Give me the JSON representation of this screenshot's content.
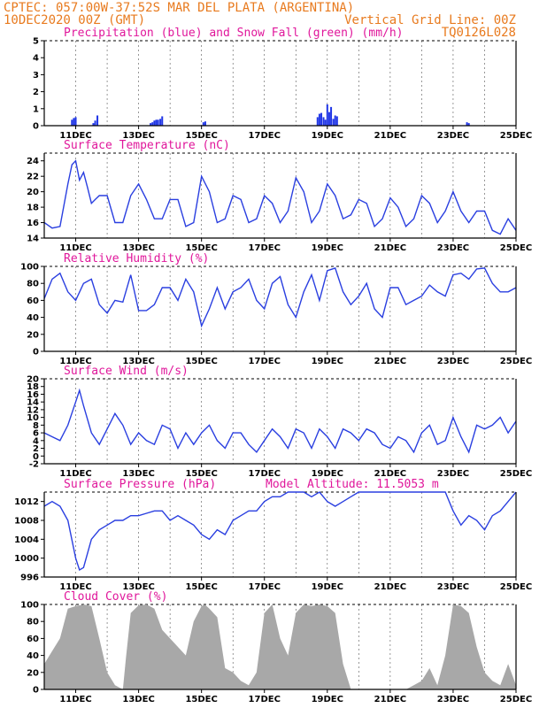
{
  "header": {
    "station": "CPTEC:  057:00W-37:52S  MAR DEL PLATA (ARGENTINA)",
    "run": "10DEC2020 00Z (GMT)",
    "grid_note": "Vertical Grid Line: 00Z",
    "model_code": "TQ0126L028"
  },
  "x_axis": {
    "start_day": 10,
    "end_day": 25,
    "tick_days": [
      11,
      13,
      15,
      17,
      19,
      21,
      23,
      25
    ],
    "tick_labels": [
      "11DEC",
      "13DEC",
      "15DEC",
      "17DEC",
      "19DEC",
      "21DEC",
      "23DEC",
      "25DEC"
    ]
  },
  "colors": {
    "header": "#e87a1e",
    "title": "#e0179b",
    "line": "#2a3fe0",
    "precip": "#1f35e6",
    "snow": "#2fb52f",
    "cloud": "#a8a8a8"
  },
  "chart_data": [
    {
      "type": "bar",
      "title": "Precipitation (blue) and Snow Fall (green) (mm/h)",
      "ylim": [
        0,
        5
      ],
      "yticks": [
        0,
        1,
        2,
        3,
        4,
        5
      ],
      "series": [
        {
          "name": "Precipitation",
          "x": [
            10.88,
            10.94,
            11.0,
            11.56,
            11.62,
            11.69,
            13.38,
            13.44,
            13.5,
            13.56,
            13.62,
            13.69,
            13.75,
            15.06,
            15.12,
            18.69,
            18.75,
            18.81,
            18.88,
            18.94,
            19.0,
            19.06,
            19.12,
            19.19,
            19.25,
            19.31,
            23.44,
            23.5
          ],
          "values": [
            0.35,
            0.45,
            0.5,
            0.15,
            0.3,
            0.6,
            0.15,
            0.2,
            0.3,
            0.35,
            0.35,
            0.4,
            0.55,
            0.2,
            0.25,
            0.5,
            0.7,
            0.75,
            0.5,
            0.35,
            1.25,
            0.8,
            1.1,
            0.4,
            0.6,
            0.55,
            0.2,
            0.15
          ]
        },
        {
          "name": "Snow Fall",
          "x": [],
          "values": []
        }
      ]
    },
    {
      "type": "line",
      "title": "Surface Temperature (nC)",
      "ylim": [
        14,
        25
      ],
      "yticks": [
        14,
        16,
        18,
        20,
        22,
        24
      ],
      "x": [
        10.0,
        10.25,
        10.5,
        10.75,
        10.88,
        11.0,
        11.12,
        11.25,
        11.38,
        11.5,
        11.62,
        11.75,
        12.0,
        12.25,
        12.5,
        12.75,
        13.0,
        13.25,
        13.5,
        13.75,
        14.0,
        14.25,
        14.5,
        14.75,
        15.0,
        15.25,
        15.5,
        15.75,
        16.0,
        16.25,
        16.5,
        16.75,
        17.0,
        17.25,
        17.5,
        17.75,
        18.0,
        18.25,
        18.5,
        18.75,
        19.0,
        19.25,
        19.5,
        19.75,
        20.0,
        20.25,
        20.5,
        20.75,
        21.0,
        21.25,
        21.5,
        21.75,
        22.0,
        22.25,
        22.5,
        22.75,
        23.0,
        23.25,
        23.5,
        23.75,
        24.0,
        24.25,
        24.5,
        24.75,
        25.0
      ],
      "values": [
        16.0,
        15.3,
        15.5,
        21.0,
        23.5,
        24.0,
        21.5,
        22.5,
        20.5,
        18.5,
        19.0,
        19.5,
        19.5,
        16.0,
        16.0,
        19.5,
        21.0,
        19.0,
        16.5,
        16.5,
        19.0,
        19.0,
        15.5,
        16.0,
        22.0,
        20.0,
        16.0,
        16.5,
        19.5,
        19.0,
        16.0,
        16.5,
        19.5,
        18.5,
        16.0,
        17.5,
        21.8,
        20.0,
        16.0,
        17.5,
        21.0,
        19.5,
        16.5,
        17.0,
        19.0,
        18.5,
        15.5,
        16.5,
        19.2,
        18.0,
        15.5,
        16.5,
        19.5,
        18.5,
        16.0,
        17.5,
        20.0,
        17.5,
        16.0,
        17.5,
        17.5,
        15.0,
        14.5,
        16.5,
        15.0
      ]
    },
    {
      "type": "line",
      "title": "Relative Humidity (%)",
      "ylim": [
        0,
        100
      ],
      "yticks": [
        0,
        20,
        40,
        60,
        80,
        100
      ],
      "x": [
        10.0,
        10.25,
        10.5,
        10.75,
        11.0,
        11.25,
        11.5,
        11.75,
        12.0,
        12.25,
        12.5,
        12.75,
        13.0,
        13.25,
        13.5,
        13.75,
        14.0,
        14.25,
        14.5,
        14.75,
        15.0,
        15.25,
        15.5,
        15.75,
        16.0,
        16.25,
        16.5,
        16.75,
        17.0,
        17.25,
        17.5,
        17.75,
        18.0,
        18.25,
        18.5,
        18.75,
        19.0,
        19.25,
        19.5,
        19.75,
        20.0,
        20.25,
        20.5,
        20.75,
        21.0,
        21.25,
        21.5,
        21.75,
        22.0,
        22.25,
        22.5,
        22.75,
        23.0,
        23.25,
        23.5,
        23.75,
        24.0,
        24.25,
        24.5,
        24.75,
        25.0
      ],
      "values": [
        62,
        85,
        92,
        70,
        60,
        80,
        85,
        55,
        45,
        60,
        58,
        90,
        48,
        48,
        55,
        75,
        75,
        60,
        85,
        70,
        30,
        50,
        75,
        50,
        70,
        75,
        85,
        60,
        50,
        80,
        88,
        55,
        40,
        70,
        90,
        60,
        95,
        98,
        70,
        55,
        65,
        80,
        50,
        40,
        75,
        75,
        55,
        60,
        65,
        78,
        70,
        65,
        90,
        92,
        85,
        97,
        98,
        80,
        70,
        70,
        75
      ]
    },
    {
      "type": "line",
      "title": "Surface Wind (m/s)",
      "ylim": [
        -2,
        20
      ],
      "yticks": [
        -2,
        0,
        2,
        4,
        6,
        8,
        10,
        12,
        14,
        16,
        18,
        20
      ],
      "x": [
        10.0,
        10.25,
        10.5,
        10.75,
        11.0,
        11.12,
        11.25,
        11.5,
        11.75,
        12.0,
        12.25,
        12.5,
        12.75,
        13.0,
        13.25,
        13.5,
        13.75,
        14.0,
        14.25,
        14.5,
        14.75,
        15.0,
        15.25,
        15.5,
        15.75,
        16.0,
        16.25,
        16.5,
        16.75,
        17.0,
        17.25,
        17.5,
        17.75,
        18.0,
        18.25,
        18.5,
        18.75,
        19.0,
        19.25,
        19.5,
        19.75,
        20.0,
        20.25,
        20.5,
        20.75,
        21.0,
        21.25,
        21.5,
        21.75,
        22.0,
        22.25,
        22.5,
        22.75,
        23.0,
        23.25,
        23.5,
        23.75,
        24.0,
        24.25,
        24.5,
        24.75,
        25.0
      ],
      "values": [
        6,
        5,
        4,
        8,
        14,
        17,
        13,
        6,
        3,
        7,
        11,
        8,
        3,
        6,
        4,
        3,
        8,
        7,
        2,
        6,
        3,
        6,
        8,
        4,
        2,
        6,
        6,
        3,
        1,
        4,
        7,
        5,
        2,
        7,
        6,
        2,
        7,
        5,
        2,
        7,
        6,
        4,
        7,
        6,
        3,
        2,
        5,
        4,
        1,
        6,
        8,
        3,
        4,
        10,
        5,
        1,
        8,
        7,
        8,
        10,
        6,
        9
      ]
    },
    {
      "type": "line",
      "title": "Surface Pressure (hPa)",
      "annotation": "Model Altitude: 11.5053 m",
      "ylim": [
        996,
        1014
      ],
      "yticks": [
        996,
        1000,
        1004,
        1008,
        1012
      ],
      "x": [
        10.0,
        10.25,
        10.5,
        10.75,
        11.0,
        11.12,
        11.25,
        11.5,
        11.75,
        12.0,
        12.25,
        12.5,
        12.75,
        13.0,
        13.25,
        13.5,
        13.75,
        14.0,
        14.25,
        14.5,
        14.75,
        15.0,
        15.25,
        15.5,
        15.75,
        16.0,
        16.25,
        16.5,
        16.75,
        17.0,
        17.25,
        17.5,
        17.75,
        18.0,
        18.25,
        18.5,
        18.75,
        19.0,
        19.25,
        19.5,
        19.75,
        20.0,
        20.25,
        20.5,
        20.75,
        21.0,
        21.5,
        22.0,
        22.5,
        22.75,
        23.0,
        23.25,
        23.5,
        23.75,
        24.0,
        24.25,
        24.5,
        24.75,
        25.0
      ],
      "values": [
        1011,
        1012,
        1011,
        1008,
        1000,
        997.5,
        998,
        1004,
        1006,
        1007,
        1008,
        1008,
        1009,
        1009,
        1009.5,
        1010,
        1010,
        1008,
        1009,
        1008,
        1007,
        1005,
        1004,
        1006,
        1005,
        1008,
        1009,
        1010,
        1010,
        1012,
        1013,
        1013,
        1014,
        1014,
        1014,
        1013,
        1014,
        1012,
        1011,
        1012,
        1013,
        1014,
        1015,
        1015,
        1015,
        1015,
        1015,
        1015,
        1015,
        1015,
        1010,
        1007,
        1009,
        1008,
        1006,
        1009,
        1010,
        1012,
        1014
      ]
    },
    {
      "type": "area",
      "title": "Cloud Cover (%)",
      "ylim": [
        0,
        100
      ],
      "yticks": [
        0,
        20,
        40,
        60,
        80,
        100
      ],
      "x": [
        10.0,
        10.25,
        10.5,
        10.75,
        11.0,
        11.25,
        11.5,
        11.75,
        12.0,
        12.25,
        12.5,
        12.6,
        12.75,
        13.0,
        13.25,
        13.5,
        13.75,
        14.0,
        14.25,
        14.5,
        14.75,
        15.0,
        15.1,
        15.25,
        15.5,
        15.75,
        16.0,
        16.25,
        16.5,
        16.75,
        17.0,
        17.25,
        17.5,
        17.75,
        18.0,
        18.25,
        18.5,
        18.75,
        19.0,
        19.25,
        19.5,
        19.75,
        20.0,
        20.25,
        20.5,
        20.75,
        21.0,
        21.25,
        21.5,
        21.75,
        22.0,
        22.25,
        22.5,
        22.75,
        23.0,
        23.25,
        23.5,
        23.75,
        24.0,
        24.25,
        24.5,
        24.75,
        25.0
      ],
      "values": [
        30,
        45,
        60,
        95,
        98,
        100,
        98,
        60,
        20,
        5,
        0,
        38,
        90,
        99,
        100,
        95,
        70,
        60,
        50,
        40,
        80,
        98,
        100,
        95,
        85,
        25,
        20,
        10,
        5,
        20,
        90,
        100,
        60,
        40,
        90,
        100,
        98,
        100,
        98,
        90,
        30,
        0,
        0,
        0,
        0,
        0,
        0,
        0,
        0,
        5,
        10,
        25,
        5,
        40,
        100,
        98,
        90,
        50,
        20,
        10,
        5,
        30,
        5
      ]
    }
  ]
}
